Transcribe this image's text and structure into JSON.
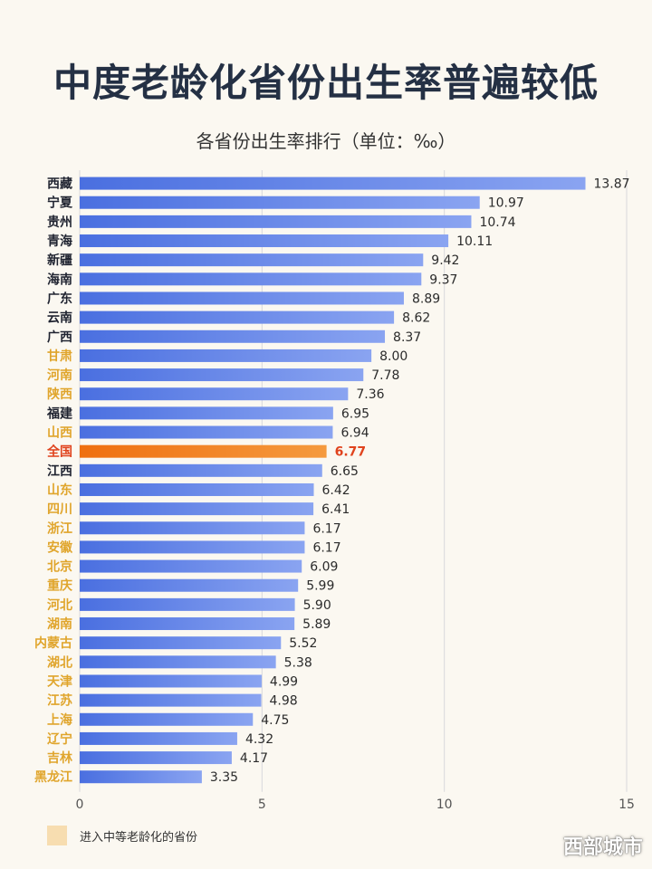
{
  "title": "中度老龄化省份出生率普遍较低",
  "subtitle": "各省份出生率排行（单位：‰）",
  "legend": {
    "label": "进入中等老龄化的省份",
    "color": "#f7ddb0"
  },
  "watermark": "西部城市",
  "colors": {
    "bar": "#5e82e8",
    "highlight_bar": "#f07d1e",
    "label_normal": "#1f2330",
    "label_aged": "#e0a52c",
    "label_highlight": "#e0431d"
  },
  "chart_data": {
    "type": "bar",
    "orientation": "horizontal",
    "title": "各省份出生率排行（单位：‰）",
    "xlim": [
      0,
      15
    ],
    "xticks": [
      0,
      5,
      10,
      15
    ],
    "categories": [
      "西藏",
      "宁夏",
      "贵州",
      "青海",
      "新疆",
      "海南",
      "广东",
      "云南",
      "广西",
      "甘肃",
      "河南",
      "陕西",
      "福建",
      "山西",
      "全国",
      "江西",
      "山东",
      "四川",
      "浙江",
      "安徽",
      "北京",
      "重庆",
      "河北",
      "湖南",
      "内蒙古",
      "湖北",
      "天津",
      "江苏",
      "上海",
      "辽宁",
      "吉林",
      "黑龙江"
    ],
    "values": [
      13.87,
      10.97,
      10.74,
      10.11,
      9.42,
      9.37,
      8.89,
      8.62,
      8.37,
      8.0,
      7.78,
      7.36,
      6.95,
      6.94,
      6.77,
      6.65,
      6.42,
      6.41,
      6.17,
      6.17,
      6.09,
      5.99,
      5.9,
      5.89,
      5.52,
      5.38,
      4.99,
      4.98,
      4.75,
      4.32,
      4.17,
      3.35
    ],
    "value_labels": [
      "13.87",
      "10.97",
      "10.74",
      "10.11",
      "9.42",
      "9.37",
      "8.89",
      "8.62",
      "8.37",
      "8.00",
      "7.78",
      "7.36",
      "6.95",
      "6.94",
      "6.77",
      "6.65",
      "6.42",
      "6.41",
      "6.17",
      "6.17",
      "6.09",
      "5.99",
      "5.90",
      "5.89",
      "5.52",
      "5.38",
      "4.99",
      "4.98",
      "4.75",
      "4.32",
      "4.17",
      "3.35"
    ],
    "category_kind": [
      "normal",
      "normal",
      "normal",
      "normal",
      "normal",
      "normal",
      "normal",
      "normal",
      "normal",
      "aged",
      "aged",
      "aged",
      "normal",
      "aged",
      "national",
      "normal",
      "aged",
      "aged",
      "aged",
      "aged",
      "aged",
      "aged",
      "aged",
      "aged",
      "aged",
      "aged",
      "aged",
      "aged",
      "aged",
      "aged",
      "aged",
      "aged"
    ],
    "highlight": "全国",
    "grid": true,
    "legend_position": "bottom-left"
  }
}
